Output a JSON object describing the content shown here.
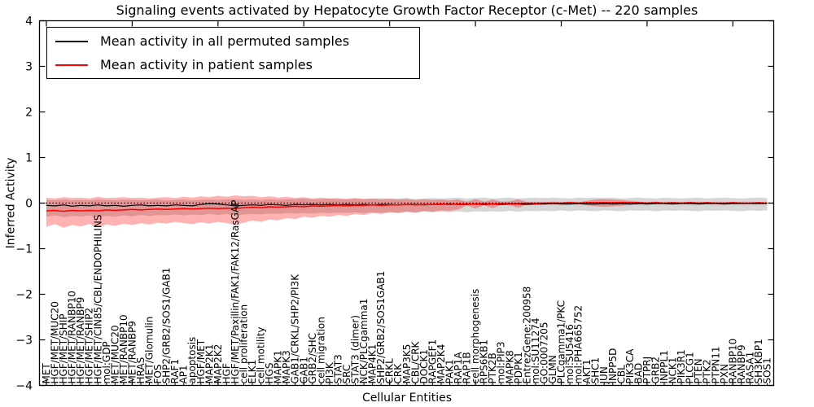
{
  "chart_data": {
    "type": "line",
    "title": "Signaling events activated by Hepatocyte Growth Factor Receptor (c-Met) -- 220 samples",
    "xlabel": "Cellular Entities",
    "ylabel": "Inferred Activity",
    "ylim": [
      -4,
      4
    ],
    "ytick_values": [
      4,
      3,
      2,
      1,
      0,
      -1,
      -2,
      -3,
      -4
    ],
    "ytick_labels": [
      "4",
      "3",
      "2",
      "1",
      "0",
      "−1",
      "−2",
      "−3",
      "−4"
    ],
    "grid": false,
    "legend_position": "upper left",
    "sample_count": 220,
    "reference_line": {
      "value": 0,
      "style": "dotted",
      "color": "#000000"
    },
    "categories": [
      "MET",
      "HGF/MET/MUC20",
      "HGF/MET/SHIP",
      "HGF/MET/RANBP10",
      "HGF/MET/RANBP9",
      "HGF/MET/SHIP2",
      "HGF/MET/CIN85/CBL/ENDOPHILINS",
      "mol:GDP",
      "MET/MUC20",
      "MET/RANBP10",
      "MET/RANBP9",
      "HRAS",
      "MET/Glomulin",
      "FOS",
      "SHP2/GRB2/SOS1/GAB1",
      "RAF1",
      "AP1",
      "apoptosis",
      "HGF/MET",
      "MAP2K1",
      "MAP2K2",
      "HGF",
      "HGF/MET/Paxillin/FAK1/FAK12/RasGAP",
      "cell proliferation",
      "ELK1",
      "cell motility",
      "HGS",
      "MAPK1",
      "MAPK3",
      "GAB1/CRKL/SHP2/PI3K",
      "GAB1",
      "GRB2/SHC",
      "cell migration",
      "PI3K",
      "STAT3",
      "SRC",
      "STAT3 (dimer)",
      "NCK/PLCgamma1",
      "MAP4K1",
      "SHP2/GRB2/SOS1GAB1",
      "CRKL",
      "CRK",
      "MAP3K5",
      "CBL/CRK",
      "DOCK1",
      "RAPGEF1",
      "MAP2K4",
      "PAK1",
      "RAP1A",
      "RAP1B",
      "cell morphogenesis",
      "RPS6KB1",
      "PTK2B",
      "mol:PIP3",
      "MAPK8",
      "PDPK1",
      "EntrezGene:200958",
      "mol:SU11274",
      "GO:0007205",
      "GLMN",
      "PLCgamma1/PKC",
      "mol:SU5416",
      "mol:PHA665752",
      "AKT1",
      "SHC1",
      "JUN",
      "INPP5D",
      "CBL",
      "PIK3CA",
      "BAD",
      "PTPRJ",
      "GRB2",
      "INPPL1",
      "NCK1",
      "PIK3R1",
      "PLCG1",
      "PTEN",
      "PTK2",
      "PTPN11",
      "PXN",
      "RANBP10",
      "RANBP9",
      "RASA1",
      "SH3KBP1",
      "SOS1"
    ],
    "series": [
      {
        "name": "Mean activity in all permuted samples",
        "color": "#000000",
        "style": "solid",
        "values": [
          -0.05,
          -0.06,
          -0.04,
          -0.07,
          -0.05,
          -0.06,
          -0.04,
          -0.06,
          -0.05,
          -0.07,
          -0.05,
          -0.04,
          -0.06,
          -0.05,
          -0.06,
          -0.04,
          -0.05,
          -0.06,
          -0.03,
          -0.01,
          -0.02,
          -0.04,
          -0.06,
          -0.05,
          -0.04,
          -0.05,
          -0.03,
          -0.04,
          -0.05,
          -0.03,
          -0.04,
          -0.03,
          -0.04,
          -0.03,
          -0.04,
          -0.03,
          -0.04,
          -0.03,
          -0.04,
          -0.03,
          -0.03,
          -0.04,
          -0.03,
          -0.03,
          -0.04,
          -0.03,
          -0.03,
          -0.02,
          -0.03,
          -0.03,
          -0.02,
          -0.03,
          -0.02,
          -0.03,
          -0.02,
          -0.02,
          -0.03,
          -0.02,
          -0.02,
          -0.01,
          -0.02,
          -0.02,
          -0.01,
          -0.02,
          -0.02,
          -0.01,
          -0.02,
          -0.01,
          -0.02,
          -0.01,
          -0.02,
          -0.01,
          -0.01,
          -0.02,
          -0.01,
          -0.01,
          -0.02,
          -0.01,
          -0.01,
          -0.02,
          -0.01,
          -0.01,
          -0.01,
          -0.01,
          -0.01
        ]
      },
      {
        "name": "Mean activity in patient samples",
        "color": "#ff0000",
        "style": "solid",
        "values": [
          -0.17,
          -0.16,
          -0.18,
          -0.16,
          -0.17,
          -0.16,
          -0.17,
          -0.15,
          -0.16,
          -0.15,
          -0.14,
          -0.15,
          -0.14,
          -0.13,
          -0.14,
          -0.13,
          -0.12,
          -0.13,
          -0.12,
          -0.11,
          -0.12,
          -0.11,
          -0.12,
          -0.1,
          -0.09,
          -0.1,
          -0.08,
          -0.09,
          -0.08,
          -0.07,
          -0.08,
          -0.06,
          -0.07,
          -0.06,
          -0.05,
          -0.06,
          -0.05,
          -0.05,
          -0.04,
          -0.05,
          -0.04,
          -0.04,
          -0.03,
          -0.04,
          -0.03,
          -0.03,
          -0.02,
          -0.03,
          -0.02,
          -0.02,
          -0.02,
          -0.01,
          -0.02,
          -0.01,
          -0.01,
          -0.01,
          0,
          -0.01,
          0,
          0,
          0,
          0.01,
          0,
          0.01,
          0.01,
          0.01,
          0.01,
          0.01,
          0.01,
          0.01,
          0,
          0.01,
          0,
          0.01,
          0,
          0.01,
          0,
          0.01,
          0,
          0,
          0.01,
          0,
          0,
          0.01,
          0
        ]
      }
    ],
    "bands": [
      {
        "name": "permuted samples spread",
        "color": "rgba(0,0,0,0.16)",
        "upper": [
          0.07,
          0.06,
          0.08,
          0.06,
          0.07,
          0.06,
          0.08,
          0.07,
          0.06,
          0.08,
          0.07,
          0.06,
          0.07,
          0.08,
          0.06,
          0.07,
          0.08,
          0.06,
          0.07,
          0.08,
          0.07,
          0.08,
          0.09,
          0.07,
          0.08,
          0.07,
          0.09,
          0.07,
          0.08,
          0.09,
          0.1,
          0.08,
          0.09,
          0.1,
          0.08,
          0.09,
          0.1,
          0.09,
          0.1,
          0.11,
          0.09,
          0.1,
          0.11,
          0.09,
          0.1,
          0.11,
          0.1,
          0.11,
          0.12,
          0.1,
          0.11,
          0.12,
          0.1,
          0.11,
          0.12,
          0.1,
          0.11,
          0.12,
          0.11,
          0.12,
          0.11,
          0.1,
          0.12,
          0.11,
          0.12,
          0.11,
          0.12,
          0.1,
          0.11,
          0.12,
          0.11,
          0.1,
          0.12,
          0.11,
          0.1,
          0.11,
          0.12,
          0.1,
          0.11,
          0.12,
          0.11,
          0.1,
          0.11,
          0.12,
          0.11
        ],
        "lower": [
          -0.3,
          -0.27,
          -0.31,
          -0.28,
          -0.3,
          -0.27,
          -0.31,
          -0.28,
          -0.3,
          -0.27,
          -0.29,
          -0.26,
          -0.28,
          -0.26,
          -0.27,
          -0.25,
          -0.27,
          -0.25,
          -0.26,
          -0.24,
          -0.26,
          -0.24,
          -0.27,
          -0.25,
          -0.24,
          -0.25,
          -0.23,
          -0.24,
          -0.22,
          -0.23,
          -0.22,
          -0.23,
          -0.21,
          -0.22,
          -0.21,
          -0.22,
          -0.2,
          -0.22,
          -0.2,
          -0.21,
          -0.2,
          -0.21,
          -0.19,
          -0.21,
          -0.19,
          -0.2,
          -0.19,
          -0.2,
          -0.18,
          -0.2,
          -0.18,
          -0.19,
          -0.18,
          -0.19,
          -0.17,
          -0.19,
          -0.17,
          -0.18,
          -0.17,
          -0.18,
          -0.16,
          -0.18,
          -0.16,
          -0.17,
          -0.18,
          -0.16,
          -0.17,
          -0.18,
          -0.16,
          -0.17,
          -0.16,
          -0.18,
          -0.16,
          -0.17,
          -0.16,
          -0.17,
          -0.18,
          -0.16,
          -0.17,
          -0.16,
          -0.17,
          -0.18,
          -0.16,
          -0.17,
          -0.16
        ]
      },
      {
        "name": "patient samples spread",
        "color": "rgba(255,0,0,0.30)",
        "upper": [
          0.12,
          0.1,
          0.13,
          0.11,
          0.12,
          0.1,
          0.14,
          0.11,
          0.12,
          0.13,
          0.11,
          0.12,
          0.1,
          0.12,
          0.13,
          0.11,
          0.14,
          0.12,
          0.15,
          0.13,
          0.16,
          0.14,
          0.17,
          0.15,
          0.16,
          0.13,
          0.15,
          0.12,
          0.14,
          0.11,
          0.13,
          0.1,
          0.12,
          0.1,
          0.11,
          0.09,
          0.11,
          0.09,
          0.1,
          0.08,
          0.1,
          0.08,
          0.09,
          0.07,
          0.09,
          0.07,
          0.08,
          0.06,
          0.08,
          0.03,
          0.09,
          0.03,
          0.08,
          0.03,
          0.04,
          0.09,
          0.02,
          0.03,
          0.02,
          0.03,
          0.02,
          0.03,
          0.02,
          0.05,
          0.08,
          0.09,
          0.08,
          0.07,
          0.05,
          0.03,
          0.02,
          0.03,
          0.02,
          0.02,
          0.02,
          0.03,
          0.02,
          0.02,
          0.02,
          0.02,
          0.02,
          0.02,
          0.02,
          0.02,
          0.02
        ],
        "lower": [
          -0.52,
          -0.46,
          -0.54,
          -0.48,
          -0.51,
          -0.46,
          -0.53,
          -0.47,
          -0.5,
          -0.45,
          -0.48,
          -0.44,
          -0.47,
          -0.43,
          -0.45,
          -0.41,
          -0.44,
          -0.46,
          -0.42,
          -0.45,
          -0.41,
          -0.44,
          -0.48,
          -0.43,
          -0.38,
          -0.41,
          -0.36,
          -0.38,
          -0.33,
          -0.35,
          -0.3,
          -0.32,
          -0.28,
          -0.3,
          -0.26,
          -0.28,
          -0.24,
          -0.26,
          -0.22,
          -0.24,
          -0.2,
          -0.22,
          -0.19,
          -0.21,
          -0.17,
          -0.19,
          -0.16,
          -0.17,
          -0.14,
          -0.05,
          -0.12,
          -0.05,
          -0.11,
          -0.04,
          -0.05,
          -0.1,
          -0.03,
          -0.04,
          -0.03,
          -0.03,
          -0.02,
          -0.03,
          -0.02,
          -0.05,
          -0.07,
          -0.08,
          -0.07,
          -0.06,
          -0.04,
          -0.03,
          -0.02,
          -0.02,
          -0.02,
          -0.02,
          -0.02,
          -0.02,
          -0.02,
          -0.02,
          -0.02,
          -0.02,
          -0.02,
          -0.02,
          -0.02,
          -0.02,
          -0.02
        ]
      }
    ]
  }
}
